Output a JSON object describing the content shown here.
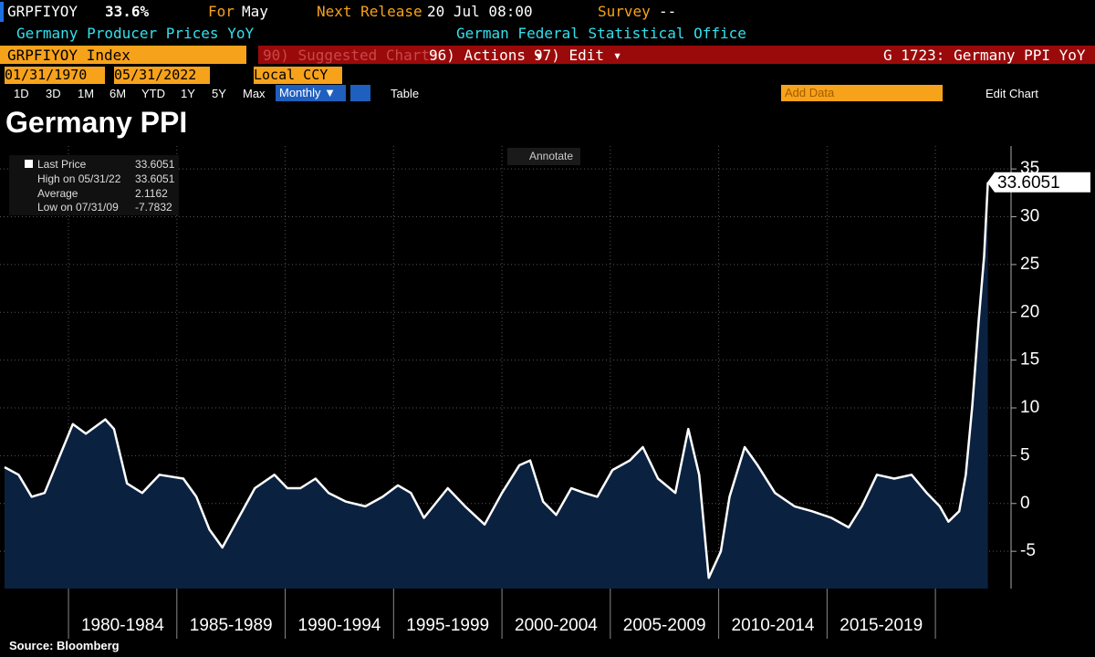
{
  "header": {
    "ticker": "GRPFIYOY",
    "last": "33.6%",
    "for_label": "For",
    "for_value": "May",
    "release_label": "Next Release",
    "release_value": "20 Jul 08:00",
    "survey_label": "Survey",
    "survey_value": "--",
    "description": "Germany Producer Prices YoY",
    "source_org": "German Federal Statistical Office"
  },
  "toolbar": {
    "security": "GRPFIYOY Index",
    "suggested": "90) Suggested Charts",
    "actions": "96) Actions ▾",
    "edit": "97) Edit ▾",
    "chart_id": "G 1723: Germany PPI YoY",
    "start_date": "01/31/1970",
    "end_date": "05/31/2022",
    "currency": "Local CCY",
    "periods": [
      "1D",
      "3D",
      "1M",
      "6M",
      "YTD",
      "1Y",
      "5Y",
      "Max"
    ],
    "frequency": "Monthly ▼",
    "table": "Table",
    "add_data": "Add Data",
    "edit_chart": "Edit Chart"
  },
  "chart_data": {
    "type": "line",
    "title": "Germany PPI",
    "annotate": "Annotate",
    "stats": [
      {
        "label": "High on 05/31/22",
        "value": 33.6051
      },
      {
        "label": "Average",
        "value": 2.1162
      },
      {
        "label": "Low on 07/31/09",
        "value": -7.7832
      }
    ],
    "series": [
      {
        "name": "Last Price",
        "color": "#ffffff",
        "fill": "#0b2140",
        "x": [
          1977.05,
          1977.7,
          1978.3,
          1978.9,
          1979.6,
          1980.2,
          1980.8,
          1981.7,
          1982.1,
          1982.7,
          1983.4,
          1984.2,
          1985.3,
          1985.9,
          1986.5,
          1987.1,
          1987.8,
          1988.6,
          1989.5,
          1990.1,
          1990.7,
          1991.4,
          1992.0,
          1992.8,
          1993.7,
          1994.5,
          1995.2,
          1995.8,
          1996.4,
          1997.5,
          1998.3,
          1999.2,
          2000.0,
          2000.8,
          2001.3,
          2001.9,
          2002.5,
          2003.2,
          2003.8,
          2004.4,
          2005.1,
          2005.9,
          2006.5,
          2007.2,
          2008.0,
          2008.6,
          2009.1,
          2009.54,
          2010.1,
          2010.5,
          2011.2,
          2011.8,
          2012.6,
          2013.5,
          2014.3,
          2015.2,
          2016.0,
          2016.6,
          2017.3,
          2018.1,
          2018.9,
          2019.6,
          2020.2,
          2020.6,
          2021.1,
          2021.4,
          2021.7,
          2022.0,
          2022.25,
          2022.42
        ],
        "values": [
          3.8,
          3.0,
          0.7,
          1.1,
          5.0,
          8.3,
          7.3,
          8.8,
          7.8,
          2.1,
          1.1,
          3.0,
          2.6,
          0.7,
          -2.7,
          -4.6,
          -1.7,
          1.6,
          3.0,
          1.6,
          1.6,
          2.6,
          1.1,
          0.2,
          -0.3,
          0.7,
          1.9,
          1.1,
          -1.5,
          1.6,
          -0.3,
          -2.2,
          1.1,
          4.0,
          4.5,
          0.2,
          -1.2,
          1.6,
          1.1,
          0.7,
          3.5,
          4.5,
          5.9,
          2.6,
          1.1,
          7.8,
          3.0,
          -7.7832,
          -5.0,
          0.7,
          5.9,
          4.0,
          1.1,
          -0.3,
          -0.8,
          -1.5,
          -2.5,
          -0.3,
          3.0,
          2.6,
          3.0,
          1.1,
          -0.3,
          -1.9,
          -0.8,
          3.0,
          10.2,
          19.2,
          25.9,
          33.6051
        ]
      }
    ],
    "xlim": [
      1976.84,
      2023.49
    ],
    "xticks": [
      {
        "value": 1980,
        "label": "1980-1984"
      },
      {
        "value": 1985,
        "label": "1985-1989"
      },
      {
        "value": 1990,
        "label": "1990-1994"
      },
      {
        "value": 1995,
        "label": "1995-1999"
      },
      {
        "value": 2000,
        "label": "2000-2004"
      },
      {
        "value": 2005,
        "label": "2005-2009"
      },
      {
        "value": 2010,
        "label": "2010-2014"
      },
      {
        "value": 2015,
        "label": "2015-2019"
      },
      {
        "value": 2020,
        "label": ""
      }
    ],
    "ylim": [
      -8.9,
      37.4
    ],
    "yticks": [
      -5,
      0,
      5,
      10,
      15,
      20,
      25,
      30,
      35
    ],
    "grid": true,
    "source": "Source: Bloomberg"
  }
}
